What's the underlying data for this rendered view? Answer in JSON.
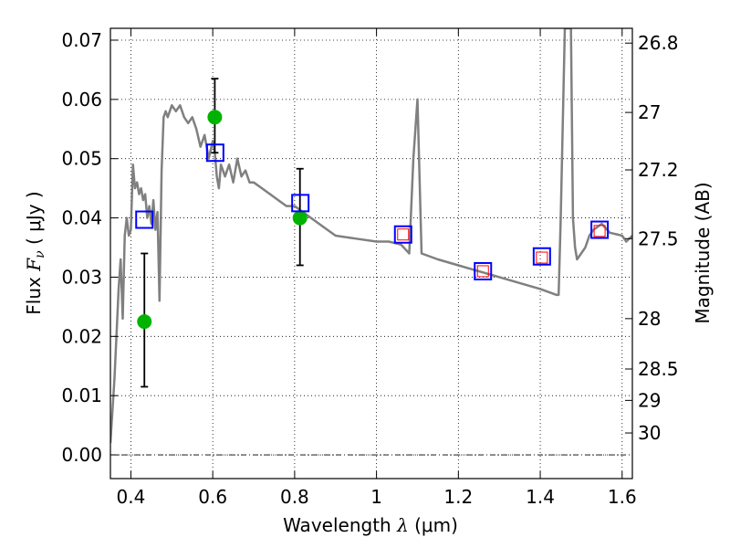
{
  "chart_data": {
    "type": "scatter",
    "xlabel": {
      "prefix": "Wavelength  ",
      "symbol": "λ",
      "unit": " (μm)"
    },
    "ylabel": {
      "prefix": "Flux  ",
      "symbol": "F",
      "sub": "ν",
      "unit": "  ( μJy )"
    },
    "y2label": "Magnitude (AB)",
    "xlim": [
      0.35,
      1.625
    ],
    "ylim": [
      -0.004,
      0.072
    ],
    "grid": true,
    "x_ticks": [
      0.4,
      0.6,
      0.8,
      1.0,
      1.2,
      1.4,
      1.6
    ],
    "x_tick_labels": [
      "0.4",
      "0.6",
      "0.8",
      "1",
      "1.2",
      "1.4",
      "1.6"
    ],
    "y_ticks": [
      0.0,
      0.01,
      0.02,
      0.03,
      0.04,
      0.05,
      0.06,
      0.07
    ],
    "y_tick_labels": [
      "0.00",
      "0.01",
      "0.02",
      "0.03",
      "0.04",
      "0.05",
      "0.06",
      "0.07"
    ],
    "magnitude_ticks": [
      {
        "label": "26.8",
        "flux": 0.0695
      },
      {
        "label": "27",
        "flux": 0.0578
      },
      {
        "label": "27.2",
        "flux": 0.0481
      },
      {
        "label": "27.5",
        "flux": 0.0365
      },
      {
        "label": "28",
        "flux": 0.023
      },
      {
        "label": "28.5",
        "flux": 0.0145
      },
      {
        "label": "29",
        "flux": 0.0092
      },
      {
        "label": "30",
        "flux": 0.0037
      }
    ],
    "model_spectrum": {
      "color": "#808080",
      "x": [
        0.35,
        0.36,
        0.37,
        0.375,
        0.38,
        0.385,
        0.39,
        0.395,
        0.4,
        0.405,
        0.41,
        0.415,
        0.42,
        0.425,
        0.43,
        0.435,
        0.44,
        0.445,
        0.45,
        0.455,
        0.46,
        0.465,
        0.47,
        0.475,
        0.48,
        0.485,
        0.49,
        0.5,
        0.51,
        0.52,
        0.53,
        0.54,
        0.55,
        0.56,
        0.57,
        0.58,
        0.59,
        0.6,
        0.605,
        0.61,
        0.615,
        0.62,
        0.63,
        0.64,
        0.65,
        0.66,
        0.67,
        0.68,
        0.69,
        0.7,
        0.72,
        0.74,
        0.76,
        0.78,
        0.8,
        0.82,
        0.84,
        0.86,
        0.88,
        0.9,
        0.95,
        1.0,
        1.03,
        1.06,
        1.08,
        1.09,
        1.1,
        1.11,
        1.15,
        1.2,
        1.25,
        1.3,
        1.35,
        1.4,
        1.44,
        1.445,
        1.45,
        1.46,
        1.47,
        1.475,
        1.48,
        1.485,
        1.49,
        1.5,
        1.51,
        1.52,
        1.53,
        1.55,
        1.57,
        1.6,
        1.61,
        1.625
      ],
      "y": [
        0.002,
        0.013,
        0.028,
        0.033,
        0.023,
        0.037,
        0.04,
        0.037,
        0.038,
        0.049,
        0.045,
        0.046,
        0.044,
        0.045,
        0.043,
        0.044,
        0.04,
        0.042,
        0.039,
        0.043,
        0.038,
        0.041,
        0.026,
        0.048,
        0.057,
        0.058,
        0.057,
        0.059,
        0.058,
        0.059,
        0.057,
        0.056,
        0.057,
        0.055,
        0.052,
        0.054,
        0.05,
        0.053,
        0.051,
        0.047,
        0.045,
        0.049,
        0.047,
        0.049,
        0.046,
        0.05,
        0.047,
        0.048,
        0.046,
        0.046,
        0.045,
        0.044,
        0.043,
        0.042,
        0.042,
        0.041,
        0.04,
        0.039,
        0.038,
        0.037,
        0.0365,
        0.036,
        0.036,
        0.0355,
        0.034,
        0.05,
        0.06,
        0.034,
        0.033,
        0.032,
        0.031,
        0.03,
        0.029,
        0.028,
        0.027,
        0.027,
        0.04,
        0.072,
        0.072,
        0.072,
        0.04,
        0.035,
        0.033,
        0.034,
        0.035,
        0.037,
        0.038,
        0.039,
        0.0375,
        0.037,
        0.036,
        0.037
      ]
    },
    "series": [
      {
        "marker": "filled-circle",
        "color": "#00b300",
        "x": [
          0.433,
          0.605,
          0.813
        ],
        "y": [
          0.0225,
          0.057,
          0.04
        ],
        "yerr_low": [
          0.0115,
          0.051,
          0.032
        ],
        "yerr_high": [
          0.034,
          0.0635,
          0.0483
        ]
      },
      {
        "marker": "open-square",
        "color": "#0000ff",
        "x": [
          0.433,
          0.606,
          0.814,
          1.065,
          1.26,
          1.404,
          1.545
        ],
        "y": [
          0.0397,
          0.051,
          0.0425,
          0.0372,
          0.031,
          0.0335,
          0.038
        ]
      },
      {
        "marker": "small-open-square",
        "color": "#ff0000",
        "x": [
          1.065,
          1.26,
          1.404,
          1.545
        ],
        "y": [
          0.0372,
          0.031,
          0.0333,
          0.0378
        ]
      }
    ]
  }
}
